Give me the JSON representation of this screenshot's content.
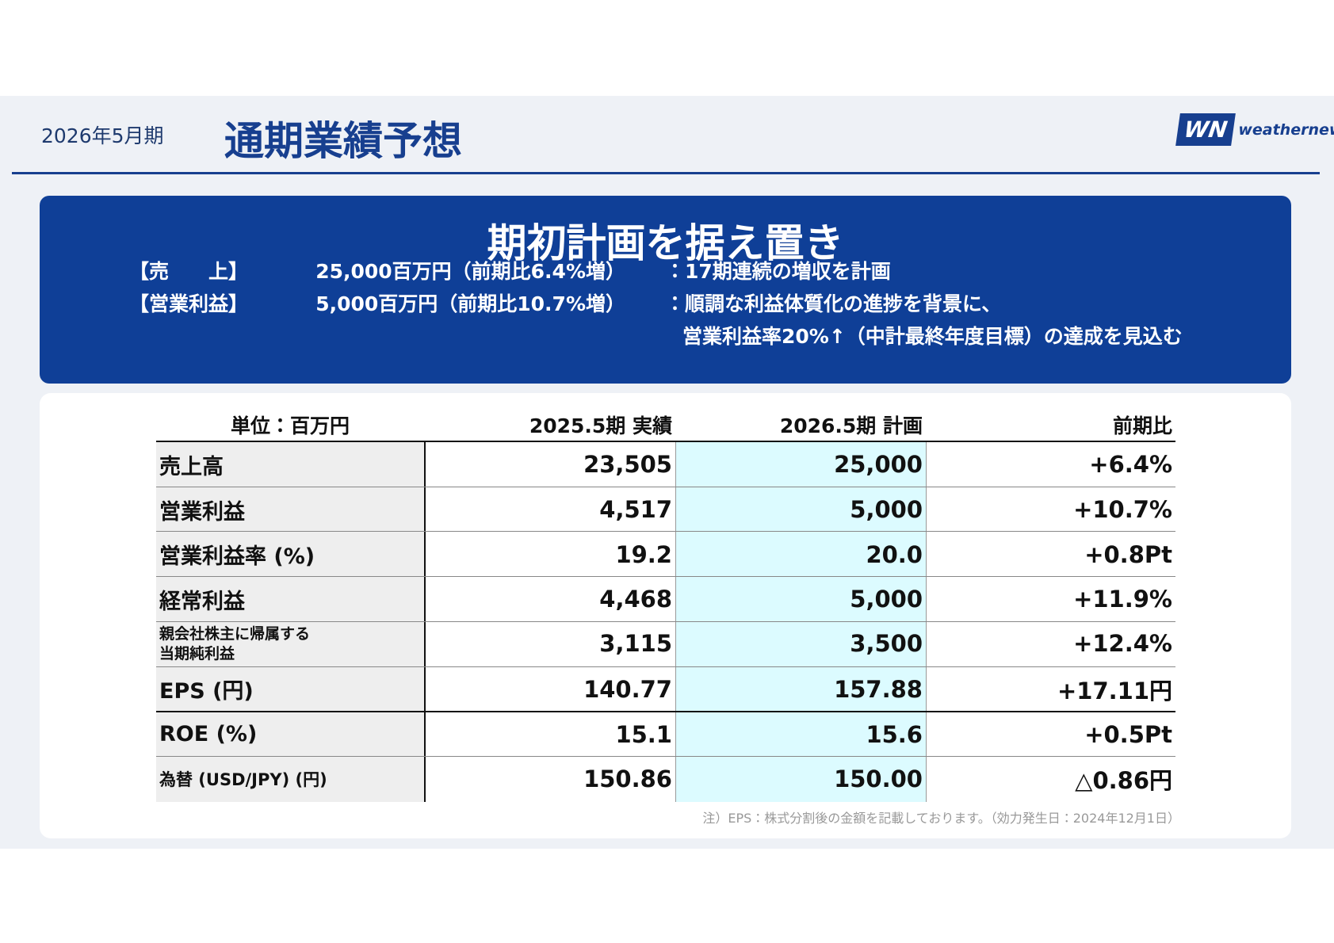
{
  "header": {
    "period": "2026年5月期",
    "title": "通期業績予想",
    "logo_mark": "WN",
    "logo_text": "weathernews"
  },
  "banner": {
    "title": "期初計画を据え置き",
    "lines": [
      {
        "label": "【売　　上】",
        "value": "25,000百万円（前期比6.4%増）",
        "comment": "：17期連続の増収を計画"
      },
      {
        "label": "【営業利益】",
        "value": "5,000百万円（前期比10.7%増）",
        "comment": "：順調な利益体質化の進捗を背景に、"
      },
      {
        "label": null,
        "value": null,
        "comment": "営業利益率20%↑（中計最終年度目標）の達成を見込む"
      }
    ]
  },
  "table": {
    "header": [
      "単位：百万円",
      "2025.5期 実績",
      "2026.5期 計画",
      "前期比"
    ],
    "rows": [
      [
        "売上高",
        "23,505",
        "25,000",
        "+6.4%"
      ],
      [
        "営業利益",
        "4,517",
        "5,000",
        "+10.7%"
      ],
      [
        "営業利益率 (%)",
        "19.2",
        "20.0",
        "+0.8Pt"
      ],
      [
        "経常利益",
        "4,468",
        "5,000",
        "+11.9%"
      ],
      [
        "親会社株主に帰属する\n当期純利益",
        "3,115",
        "3,500",
        "+12.4%"
      ],
      [
        "EPS (円)",
        "140.77",
        "157.88",
        "+17.11円"
      ],
      [
        "ROE (%)",
        "15.1",
        "15.6",
        "+0.5Pt"
      ],
      [
        "為替 (USD/JPY) (円)",
        "150.86",
        "150.00",
        "△0.86円"
      ]
    ],
    "note": "注）EPS：株式分割後の金額を記載しております。（効力発生日：2024年12月1日）"
  }
}
